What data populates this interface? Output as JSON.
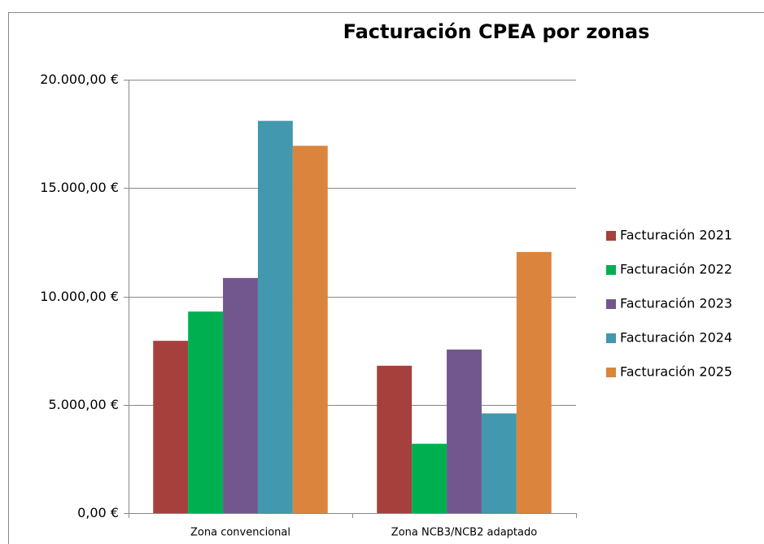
{
  "chart_data": {
    "type": "bar",
    "title": "Facturación CPEA por zonas",
    "categories": [
      "Zona convencional",
      "Zona NCB3/NCB2 adaptado"
    ],
    "series": [
      {
        "name": "Facturación 2021",
        "color": "#a5403d",
        "values": [
          7950,
          6800
        ]
      },
      {
        "name": "Facturación 2022",
        "color": "#00b050",
        "values": [
          9300,
          3200
        ]
      },
      {
        "name": "Facturación 2023",
        "color": "#72578f",
        "values": [
          10850,
          7550
        ]
      },
      {
        "name": "Facturación 2024",
        "color": "#4198af",
        "values": [
          18100,
          4600
        ]
      },
      {
        "name": "Facturación 2025",
        "color": "#db843d",
        "values": [
          16950,
          12050
        ]
      }
    ],
    "ylim": [
      0,
      20000
    ],
    "yticks": [
      {
        "value": 0,
        "label": "0,00 €"
      },
      {
        "value": 5000,
        "label": "5.000,00 €"
      },
      {
        "value": 10000,
        "label": "10.000,00 €"
      },
      {
        "value": 15000,
        "label": "15.000,00 €"
      },
      {
        "value": 20000,
        "label": "20.000,00 €"
      }
    ],
    "grid": true,
    "legend": "right"
  }
}
